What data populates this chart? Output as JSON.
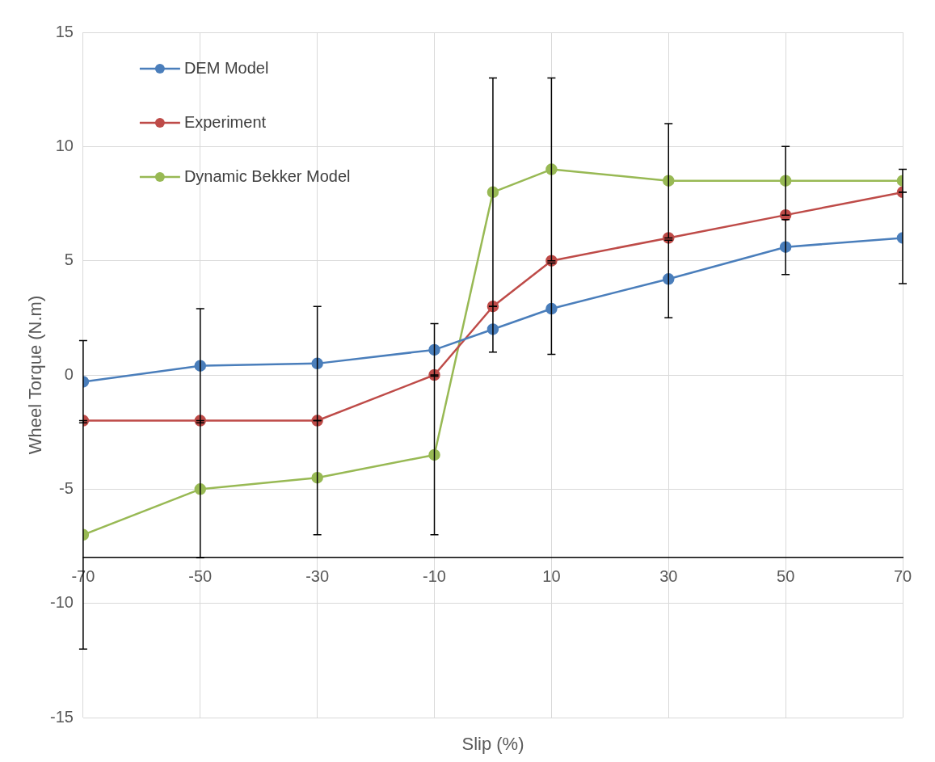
{
  "chart_data": {
    "type": "line",
    "xlabel": "Slip (%)",
    "ylabel": "Wheel Torque (N.m)",
    "x": [
      -70,
      -50,
      -30,
      -10,
      0,
      10,
      30,
      50,
      70
    ],
    "xlim": [
      -70,
      70
    ],
    "xticks": [
      -70,
      -50,
      -30,
      -10,
      10,
      30,
      50,
      70
    ],
    "ylim": [
      -15,
      15
    ],
    "yticks": [
      -15,
      -10,
      -5,
      0,
      5,
      10,
      15
    ],
    "grid": true,
    "legend": "top left",
    "marker": "circle",
    "line_style": "solid",
    "series": [
      {
        "name": "DEM Model",
        "color": "#4a7ebb",
        "values": [
          -0.3,
          0.4,
          0.5,
          1.1,
          2.0,
          2.9,
          4.2,
          5.6,
          6.0
        ],
        "errors": [
          1.8,
          2.5,
          2.5,
          1.15,
          1,
          2,
          1.7,
          1.2,
          2
        ]
      },
      {
        "name": "Experiment",
        "color": "#be4b48",
        "values": [
          -2,
          -2,
          -2,
          0,
          3,
          5,
          6,
          7,
          8
        ]
      },
      {
        "name": "Dynamic Bekker Model",
        "color": "#98b954",
        "values": [
          -7,
          -5,
          -4.5,
          -3.5,
          8,
          9,
          8.5,
          8.5,
          8.5
        ],
        "errors": [
          5,
          3,
          2.5,
          3.5,
          5,
          4,
          2.5,
          1.5,
          0.5
        ]
      }
    ]
  }
}
